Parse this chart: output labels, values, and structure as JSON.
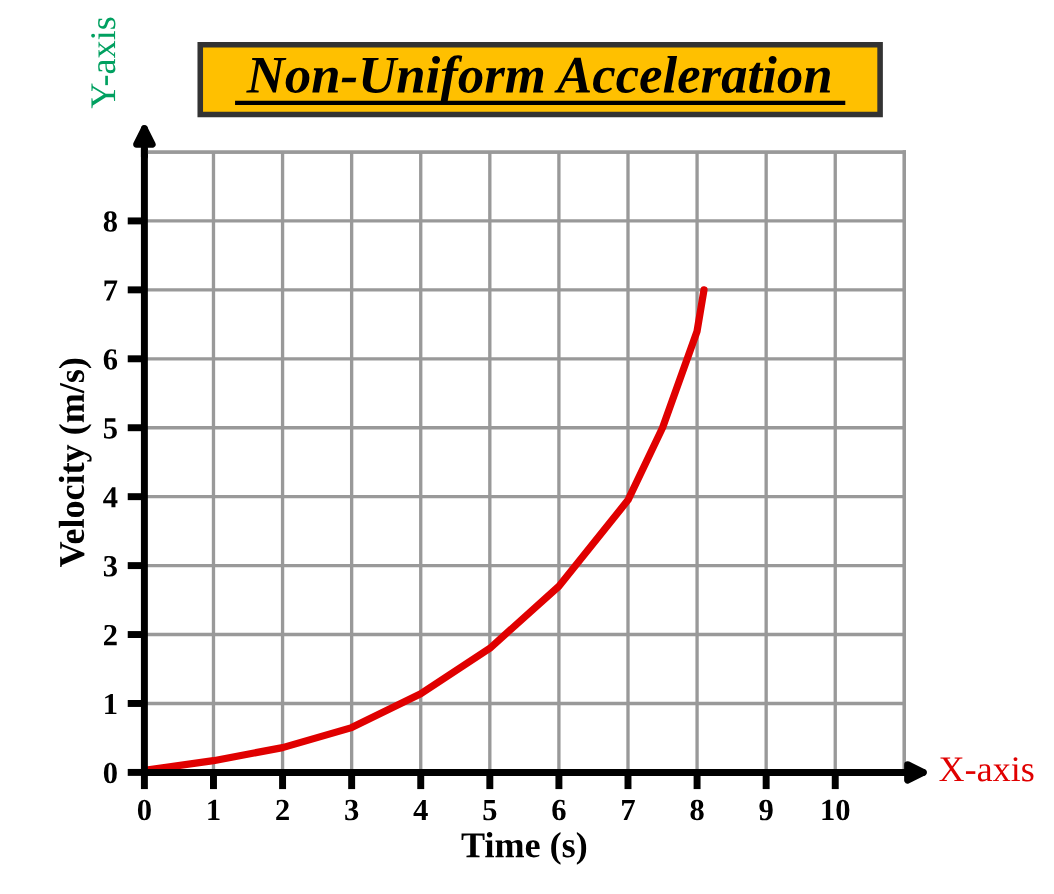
{
  "chart_data": {
    "type": "line",
    "title": "Non-Uniform Acceleration",
    "xlabel": "Time (s)",
    "ylabel": "Velocity (m/s)",
    "annotations": [
      "X-axis",
      "Y-axis"
    ],
    "x": [
      0,
      1,
      2,
      3,
      4,
      5,
      6,
      7,
      7.5,
      8,
      8.1
    ],
    "series": [
      {
        "color": "#e00000",
        "values": [
          0.03,
          0.17,
          0.36,
          0.65,
          1.14,
          1.8,
          2.7,
          3.95,
          5.0,
          6.4,
          7.0
        ]
      }
    ],
    "xlim": [
      0,
      11
    ],
    "ylim": [
      0,
      9
    ],
    "xticks": [
      0,
      1,
      2,
      3,
      4,
      5,
      6,
      7,
      8,
      9,
      10
    ],
    "yticks": [
      0,
      1,
      2,
      3,
      4,
      5,
      6,
      7,
      8
    ],
    "grid": true,
    "legend": false,
    "marker": "none",
    "line_style": "solid"
  }
}
